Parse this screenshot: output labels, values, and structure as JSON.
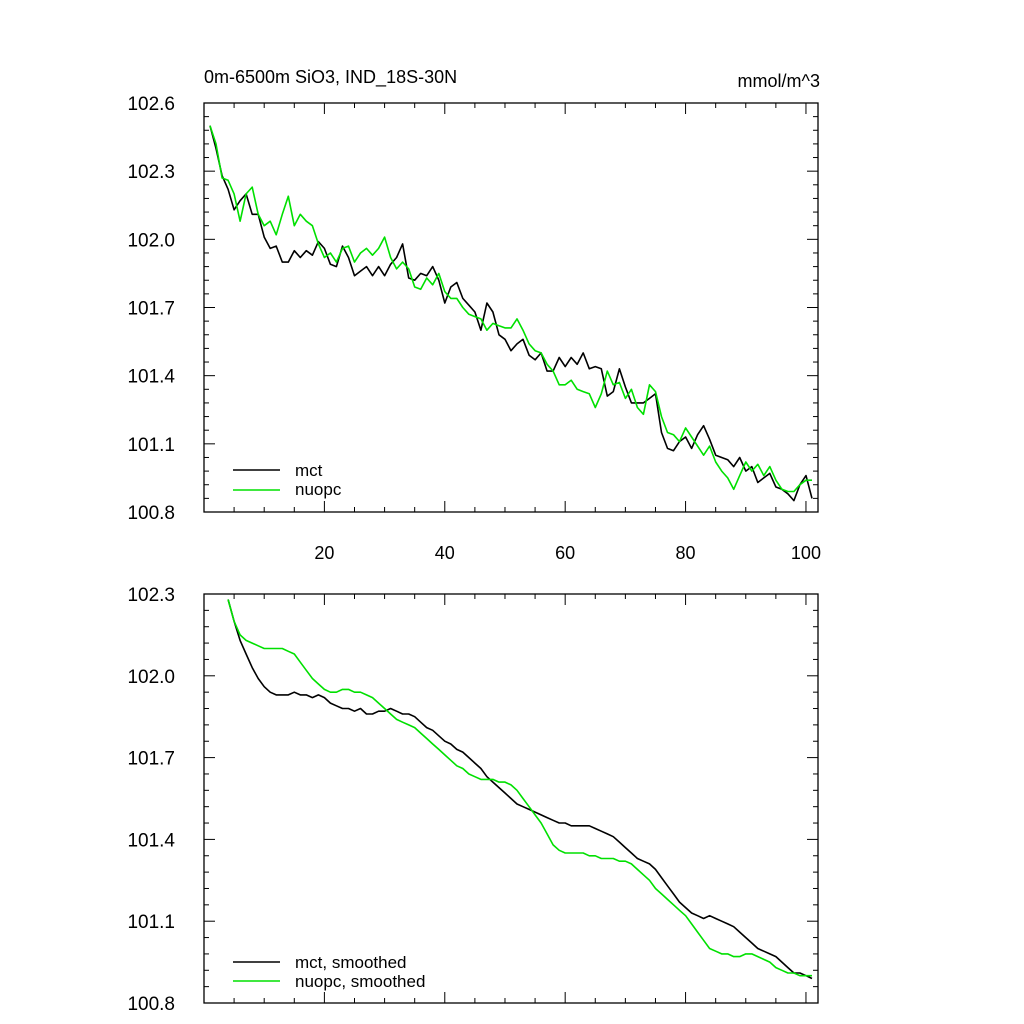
{
  "chart_data": [
    {
      "type": "line",
      "title_left": "0m-6500m SiO3, IND_18S-30N",
      "title_right": "mmol/m^3",
      "xlim": [
        0,
        102
      ],
      "ylim": [
        100.8,
        102.6
      ],
      "xticks": [
        20,
        40,
        60,
        80,
        100
      ],
      "xtick_labels": [
        "20",
        "40",
        "60",
        "80",
        "100"
      ],
      "yticks": [
        100.8,
        101.1,
        101.4,
        101.7,
        102.0,
        102.3,
        102.6
      ],
      "ytick_labels": [
        "100.8",
        "101.1",
        "101.4",
        "101.7",
        "102.0",
        "102.3",
        "102.6"
      ],
      "legend": [
        "mct",
        "nuopc"
      ],
      "series": [
        {
          "name": "mct",
          "color": "#000000",
          "x_start": 1,
          "values": [
            102.5,
            102.4,
            102.28,
            102.22,
            102.13,
            102.17,
            102.2,
            102.11,
            102.11,
            102.01,
            101.96,
            101.97,
            101.9,
            101.9,
            101.95,
            101.92,
            101.95,
            101.93,
            101.99,
            101.96,
            101.89,
            101.88,
            101.97,
            101.92,
            101.84,
            101.86,
            101.88,
            101.84,
            101.88,
            101.84,
            101.89,
            101.92,
            101.98,
            101.83,
            101.82,
            101.85,
            101.84,
            101.88,
            101.82,
            101.72,
            101.79,
            101.81,
            101.74,
            101.71,
            101.68,
            101.6,
            101.72,
            101.68,
            101.58,
            101.56,
            101.51,
            101.54,
            101.56,
            101.49,
            101.47,
            101.5,
            101.42,
            101.42,
            101.48,
            101.44,
            101.48,
            101.45,
            101.5,
            101.43,
            101.44,
            101.43,
            101.31,
            101.33,
            101.43,
            101.35,
            101.28,
            101.28,
            101.28,
            101.3,
            101.32,
            101.15,
            101.08,
            101.07,
            101.11,
            101.13,
            101.08,
            101.14,
            101.18,
            101.12,
            101.05,
            101.04,
            101.03,
            101.0,
            101.04,
            100.98,
            101.0,
            100.93,
            100.95,
            100.97,
            100.91,
            100.9,
            100.88,
            100.85,
            100.92,
            100.96,
            100.86
          ]
        },
        {
          "name": "nuopc",
          "color": "#00e000",
          "x_start": 1,
          "values": [
            102.5,
            102.42,
            102.27,
            102.26,
            102.2,
            102.08,
            102.2,
            102.23,
            102.11,
            102.06,
            102.08,
            102.02,
            102.11,
            102.19,
            102.06,
            102.11,
            102.08,
            102.06,
            101.98,
            101.92,
            101.94,
            101.9,
            101.96,
            101.97,
            101.9,
            101.94,
            101.96,
            101.93,
            101.96,
            102.01,
            101.92,
            101.87,
            101.9,
            101.87,
            101.79,
            101.78,
            101.83,
            101.8,
            101.85,
            101.77,
            101.74,
            101.74,
            101.7,
            101.67,
            101.66,
            101.65,
            101.6,
            101.63,
            101.62,
            101.61,
            101.61,
            101.65,
            101.6,
            101.54,
            101.51,
            101.5,
            101.45,
            101.42,
            101.36,
            101.36,
            101.38,
            101.34,
            101.33,
            101.32,
            101.26,
            101.32,
            101.42,
            101.36,
            101.37,
            101.3,
            101.34,
            101.26,
            101.23,
            101.36,
            101.33,
            101.22,
            101.15,
            101.14,
            101.11,
            101.17,
            101.13,
            101.09,
            101.05,
            101.09,
            101.02,
            100.98,
            100.95,
            100.9,
            100.96,
            101.02,
            100.98,
            101.01,
            100.96,
            101.0,
            100.94,
            100.9,
            100.89,
            100.89,
            100.92,
            100.94,
            100.94
          ]
        }
      ]
    },
    {
      "type": "line",
      "xlim": [
        0,
        102
      ],
      "ylim": [
        100.8,
        102.3
      ],
      "xticks": [
        20,
        40,
        60,
        80,
        100
      ],
      "yticks": [
        100.8,
        101.1,
        101.4,
        101.7,
        102.0,
        102.3
      ],
      "ytick_labels": [
        "100.8",
        "101.1",
        "101.4",
        "101.7",
        "102.0",
        "102.3"
      ],
      "legend": [
        "mct, smoothed",
        "nuopc, smoothed"
      ],
      "series": [
        {
          "name": "mct, smoothed",
          "color": "#000000",
          "x_start": 4,
          "values": [
            102.28,
            102.2,
            102.13,
            102.08,
            102.03,
            101.99,
            101.96,
            101.94,
            101.93,
            101.93,
            101.93,
            101.94,
            101.93,
            101.93,
            101.92,
            101.93,
            101.92,
            101.9,
            101.89,
            101.88,
            101.88,
            101.87,
            101.88,
            101.86,
            101.86,
            101.87,
            101.87,
            101.88,
            101.87,
            101.86,
            101.86,
            101.85,
            101.83,
            101.81,
            101.8,
            101.78,
            101.76,
            101.75,
            101.73,
            101.72,
            101.7,
            101.68,
            101.66,
            101.63,
            101.61,
            101.59,
            101.57,
            101.55,
            101.53,
            101.52,
            101.51,
            101.5,
            101.49,
            101.48,
            101.47,
            101.46,
            101.46,
            101.45,
            101.45,
            101.45,
            101.45,
            101.44,
            101.43,
            101.42,
            101.41,
            101.39,
            101.37,
            101.35,
            101.33,
            101.32,
            101.31,
            101.29,
            101.26,
            101.23,
            101.2,
            101.17,
            101.15,
            101.13,
            101.12,
            101.11,
            101.12,
            101.11,
            101.1,
            101.09,
            101.08,
            101.06,
            101.04,
            101.02,
            101.0,
            100.99,
            100.98,
            100.97,
            100.95,
            100.93,
            100.91,
            100.91,
            100.9,
            100.89
          ]
        },
        {
          "name": "nuopc, smoothed",
          "color": "#00e000",
          "x_start": 4,
          "values": [
            102.28,
            102.2,
            102.15,
            102.13,
            102.12,
            102.11,
            102.1,
            102.1,
            102.1,
            102.1,
            102.09,
            102.08,
            102.05,
            102.02,
            101.99,
            101.97,
            101.95,
            101.94,
            101.94,
            101.95,
            101.95,
            101.94,
            101.94,
            101.93,
            101.92,
            101.9,
            101.88,
            101.86,
            101.84,
            101.83,
            101.82,
            101.81,
            101.79,
            101.77,
            101.75,
            101.73,
            101.71,
            101.69,
            101.67,
            101.66,
            101.64,
            101.63,
            101.62,
            101.62,
            101.62,
            101.61,
            101.61,
            101.6,
            101.58,
            101.55,
            101.52,
            101.49,
            101.46,
            101.42,
            101.38,
            101.36,
            101.35,
            101.35,
            101.35,
            101.35,
            101.34,
            101.34,
            101.33,
            101.33,
            101.33,
            101.32,
            101.32,
            101.31,
            101.29,
            101.27,
            101.25,
            101.22,
            101.2,
            101.18,
            101.16,
            101.14,
            101.12,
            101.09,
            101.06,
            101.03,
            101.0,
            100.99,
            100.98,
            100.98,
            100.97,
            100.97,
            100.98,
            100.98,
            100.97,
            100.96,
            100.95,
            100.93,
            100.92,
            100.91,
            100.91,
            100.9,
            100.9,
            100.9
          ]
        }
      ]
    }
  ]
}
